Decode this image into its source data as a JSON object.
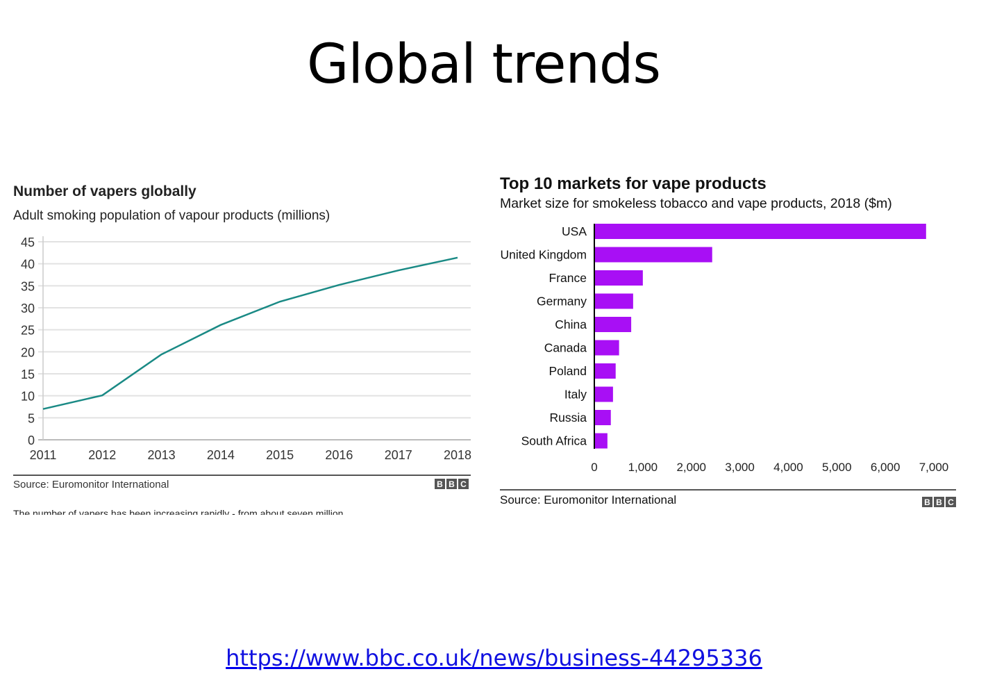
{
  "slide": {
    "title": "Global trends",
    "link": "https://www.bbc.co.uk/news/business-44295336"
  },
  "colors": {
    "line": "#1a8a85",
    "bar": "#a80ff5",
    "grid": "#e2e2e2"
  },
  "chart_data": [
    {
      "type": "line",
      "title": "Number of vapers globally",
      "subtitle": "Adult smoking population of vapour products (millions)",
      "x": [
        "2011",
        "2012",
        "2013",
        "2014",
        "2015",
        "2016",
        "2017",
        "2018"
      ],
      "series": [
        {
          "name": "Vapers (millions)",
          "values": [
            7.0,
            10.1,
            19.4,
            26.1,
            31.4,
            35.2,
            38.5,
            41.4
          ]
        }
      ],
      "yticks": [
        "0",
        "5",
        "10",
        "15",
        "20",
        "25",
        "30",
        "35",
        "40",
        "45"
      ],
      "ylim": [
        0,
        45
      ],
      "grid": true,
      "source": "Source: Euromonitor International",
      "logo": "BBC",
      "caption": "The number of vapers has been increasing rapidly - from about seven million"
    },
    {
      "type": "bar",
      "orientation": "horizontal",
      "title": "Top 10 markets for vape products",
      "subtitle": "Market size for smokeless tobacco and vape products, 2018 ($m)",
      "categories": [
        "USA",
        "United Kingdom",
        "France",
        "Germany",
        "China",
        "Canada",
        "Poland",
        "Italy",
        "Russia",
        "South Africa"
      ],
      "values": [
        6840,
        2430,
        1000,
        800,
        760,
        510,
        440,
        385,
        340,
        270
      ],
      "xticks": [
        "0",
        "1,000",
        "2,000",
        "3,000",
        "4,000",
        "5,000",
        "6,000",
        "7,000"
      ],
      "xlim": [
        0,
        7000
      ],
      "source": "Source: Euromonitor International",
      "logo": "BBC"
    }
  ]
}
